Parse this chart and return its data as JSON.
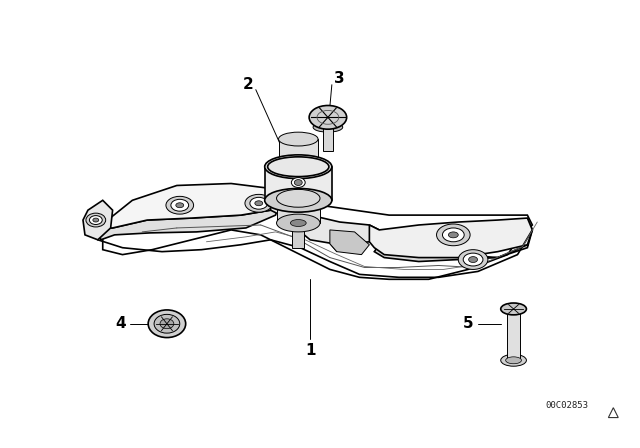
{
  "background_color": "#ffffff",
  "line_color": "#000000",
  "figure_width": 6.4,
  "figure_height": 4.48,
  "dpi": 100,
  "watermark_text": "00C02853"
}
